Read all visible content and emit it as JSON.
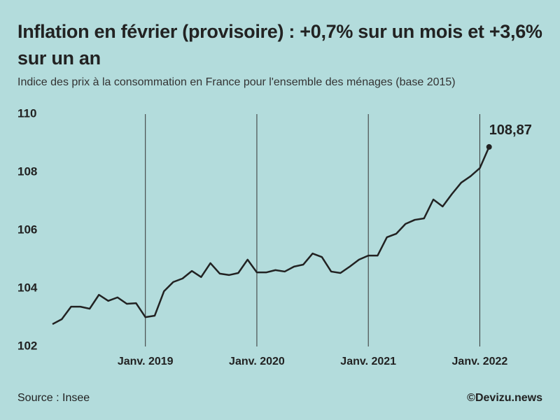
{
  "chart_data": {
    "type": "line",
    "title": "Inflation en février (provisoire) : +0,7% sur un mois et +3,6% sur un an",
    "subtitle": "Indice des prix à la consommation en France pour l'ensemble des ménages (base 2015)",
    "source": "Source : Insee",
    "credit": "©Devizu.news",
    "categories": [
      null,
      null,
      null,
      null,
      null,
      null,
      null,
      null,
      null,
      null,
      "Janv. 2019",
      null,
      null,
      null,
      null,
      null,
      null,
      null,
      null,
      null,
      null,
      null,
      "Janv. 2020",
      null,
      null,
      null,
      null,
      null,
      null,
      null,
      null,
      null,
      null,
      null,
      "Janv. 2021",
      null,
      null,
      null,
      null,
      null,
      null,
      null,
      null,
      null,
      null,
      null,
      "Janv. 2022",
      null
    ],
    "values": [
      102.77,
      102.94,
      103.37,
      103.37,
      103.3,
      103.78,
      103.57,
      103.69,
      103.47,
      103.49,
      103.01,
      103.06,
      103.9,
      104.22,
      104.34,
      104.6,
      104.39,
      104.87,
      104.51,
      104.46,
      104.53,
      104.99,
      104.55,
      104.55,
      104.63,
      104.58,
      104.75,
      104.82,
      105.2,
      105.08,
      104.58,
      104.53,
      104.75,
      104.99,
      105.13,
      105.13,
      105.76,
      105.88,
      106.22,
      106.36,
      106.41,
      107.06,
      106.82,
      107.25,
      107.64,
      107.86,
      108.14,
      108.87
    ],
    "value_labels": [
      null,
      null,
      null,
      null,
      null,
      null,
      null,
      null,
      null,
      null,
      null,
      null,
      null,
      null,
      null,
      null,
      null,
      null,
      null,
      null,
      null,
      null,
      null,
      null,
      null,
      null,
      null,
      null,
      null,
      null,
      null,
      null,
      null,
      null,
      null,
      null,
      null,
      null,
      null,
      null,
      null,
      null,
      null,
      null,
      null,
      null,
      null,
      "108,87"
    ],
    "color": "#222222",
    "ylim": [
      102,
      110
    ],
    "yticks": [
      102,
      104,
      106,
      108,
      110
    ],
    "grid": true
  }
}
